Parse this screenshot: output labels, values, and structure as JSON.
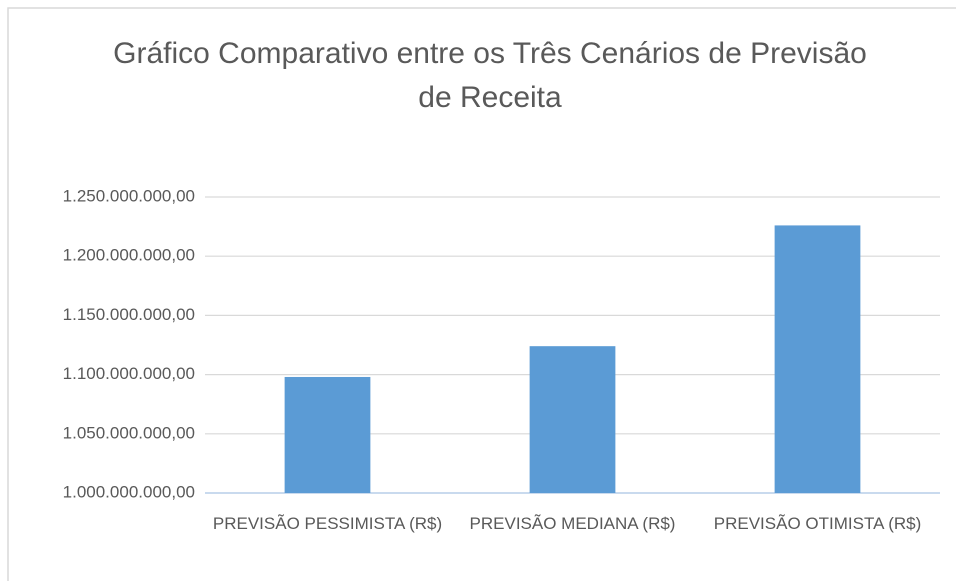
{
  "chart_data": {
    "type": "bar",
    "title": "Gráfico Comparativo entre os Três Cenários de Previsão de Receita",
    "categories": [
      "PREVISÃO PESSIMISTA (R$)",
      "PREVISÃO MEDIANA (R$)",
      "PREVISÃO OTIMISTA (R$)"
    ],
    "values": [
      1098000000,
      1124000000,
      1226000000
    ],
    "color": "#5b9bd5",
    "ylim": [
      1000000000,
      1250000000
    ],
    "yticks": [
      {
        "value": 1000000000,
        "label": "1.000.000.000,00"
      },
      {
        "value": 1050000000,
        "label": "1.050.000.000,00"
      },
      {
        "value": 1100000000,
        "label": "1.100.000.000,00"
      },
      {
        "value": 1150000000,
        "label": "1.150.000.000,00"
      },
      {
        "value": 1200000000,
        "label": "1.200.000.000,00"
      },
      {
        "value": 1250000000,
        "label": "1.250.000.000,00"
      }
    ],
    "grid": true
  }
}
